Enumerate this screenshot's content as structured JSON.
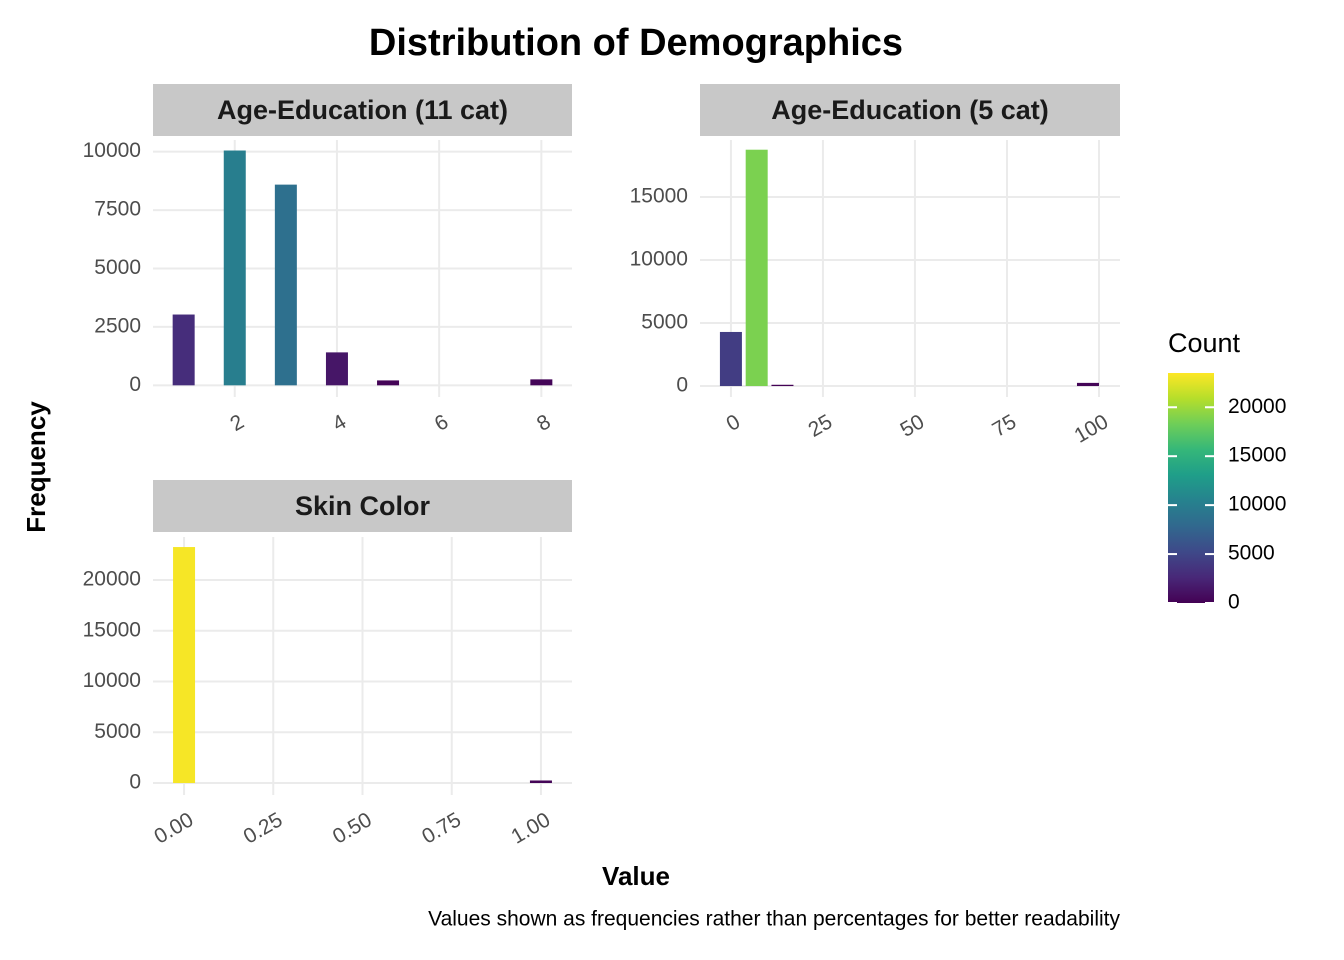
{
  "title": "Distribution of Demographics",
  "x_label": "Value",
  "y_label": "Frequency",
  "caption": "Values shown as frequencies rather than percentages for better readability",
  "color_scale": {
    "title": "Count",
    "limits": [
      0,
      23500
    ],
    "ticks": [
      0,
      5000,
      10000,
      15000,
      20000
    ],
    "colors": [
      "#440154",
      "#482878",
      "#3e4989",
      "#31688e",
      "#26828e",
      "#1f9e89",
      "#35b779",
      "#6ece58",
      "#b5de2b",
      "#fde725"
    ]
  },
  "chart_data": [
    {
      "type": "bar",
      "title": "Age-Education (11 cat)",
      "x": [
        1,
        2,
        3,
        4,
        5,
        8
      ],
      "values": [
        3030,
        10050,
        8590,
        1410,
        210,
        255
      ],
      "xlim": [
        0.4,
        8.6
      ],
      "ylim": [
        -500,
        10500
      ],
      "xticks": [
        2,
        4,
        6,
        8
      ],
      "yticks": [
        0,
        2500,
        5000,
        7500,
        10000
      ],
      "grid": true
    },
    {
      "type": "bar",
      "title": "Age-Education (5 cat)",
      "x": [
        0,
        7,
        14,
        97
      ],
      "values": [
        4290,
        18750,
        100,
        250
      ],
      "xlim": [
        -8.4,
        105.7
      ],
      "ylim": [
        -870,
        19520
      ],
      "xticks": [
        0,
        25,
        50,
        75,
        100
      ],
      "yticks": [
        0,
        5000,
        10000,
        15000
      ],
      "grid": true
    },
    {
      "type": "bar",
      "title": "Skin Color",
      "x": [
        0,
        1
      ],
      "values": [
        23250,
        250
      ],
      "xlim": [
        -0.087,
        1.087
      ],
      "ylim": [
        -1180,
        24240
      ],
      "xticks": [
        {
          "value": 0,
          "label": "0.00"
        },
        {
          "value": 0.25,
          "label": "0.25"
        },
        {
          "value": 0.5,
          "label": "0.50"
        },
        {
          "value": 0.75,
          "label": "0.75"
        },
        {
          "value": 1,
          "label": "1.00"
        }
      ],
      "yticks": [
        0,
        5000,
        10000,
        15000,
        20000
      ],
      "grid": true
    }
  ]
}
